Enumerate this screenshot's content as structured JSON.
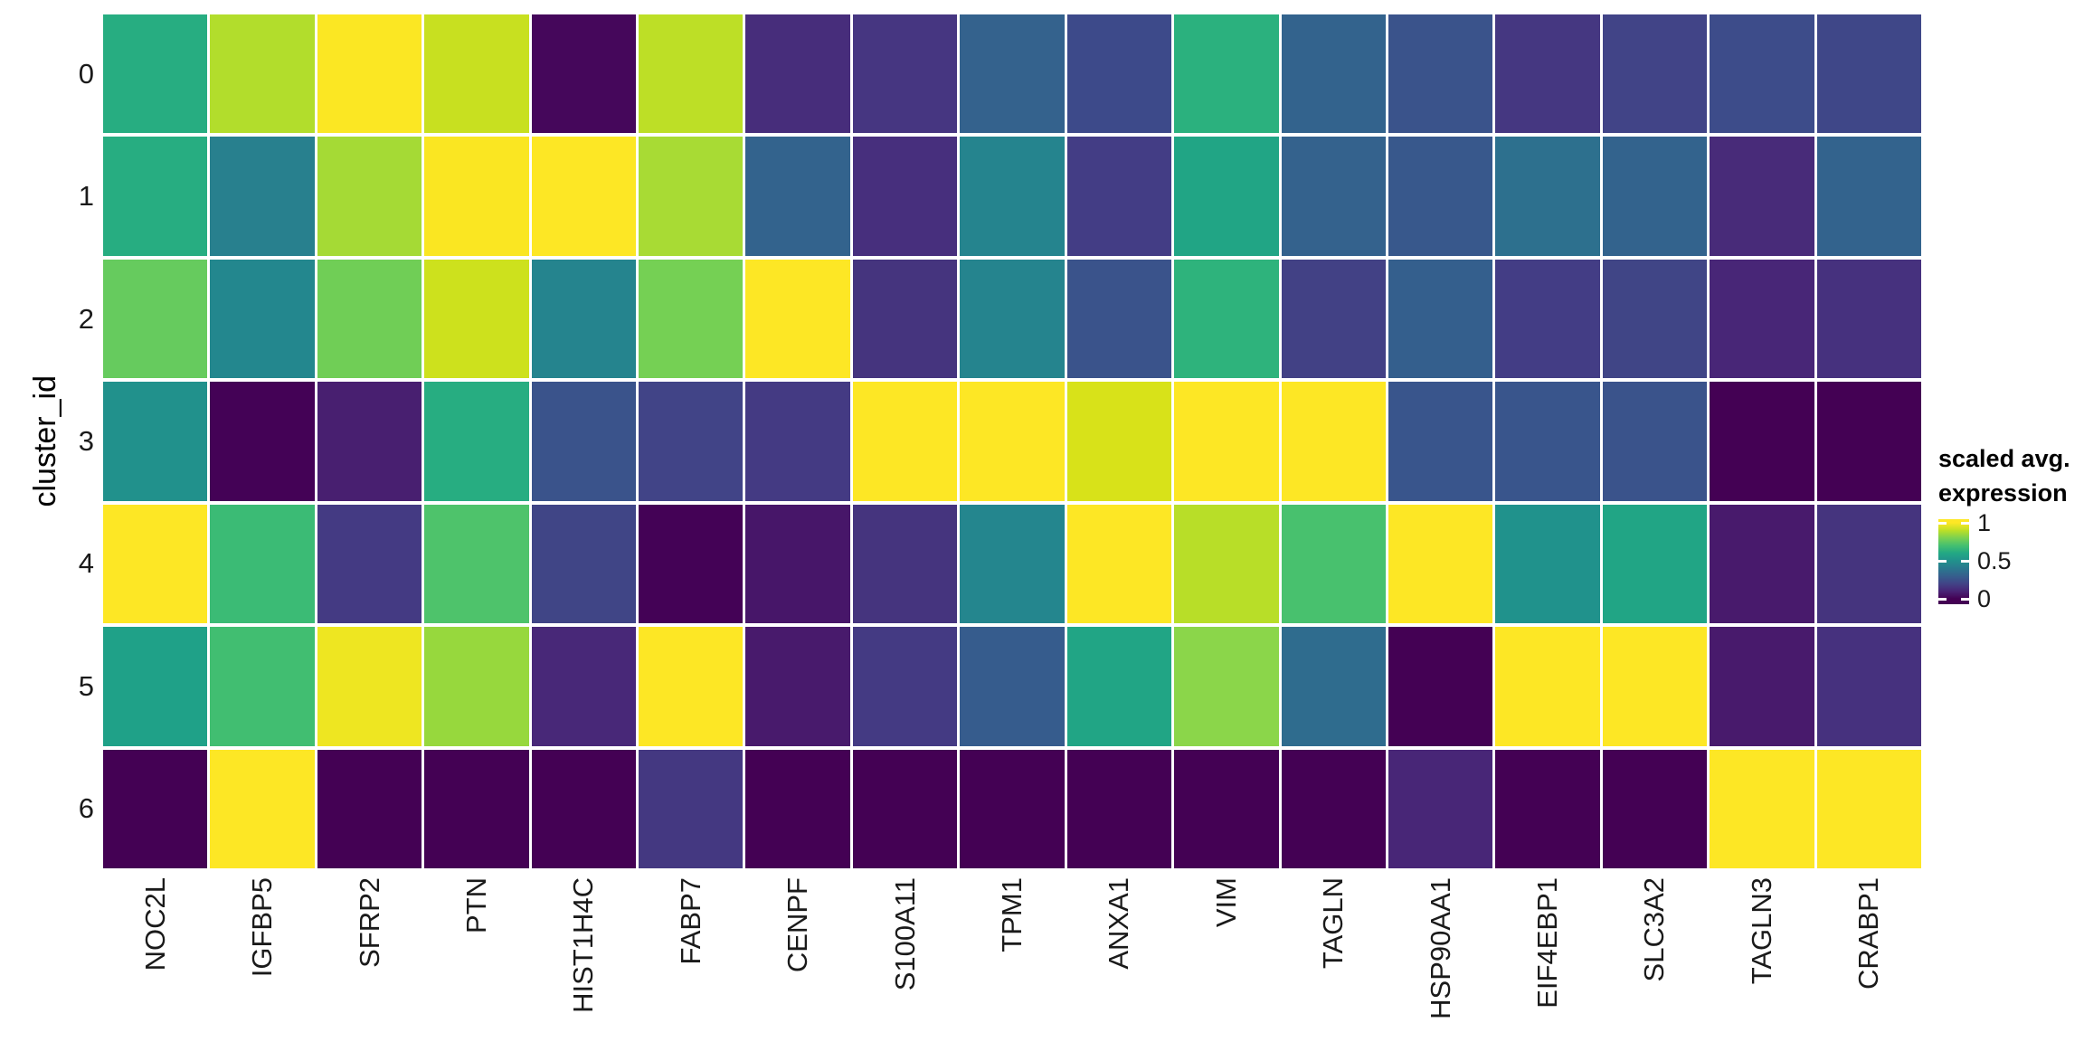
{
  "figure": {
    "background": "#ffffff"
  },
  "y_axis": {
    "title": "cluster_id",
    "tick_labels": [
      "0",
      "1",
      "2",
      "3",
      "4",
      "5",
      "6"
    ]
  },
  "x_axis": {
    "tick_labels": [
      "NOC2L",
      "IGFBP5",
      "SFRP2",
      "PTN",
      "HIST1H4C",
      "FABP7",
      "CENPF",
      "S100A11",
      "TPM1",
      "ANXA1",
      "VIM",
      "TAGLN",
      "HSP90AA1",
      "EIF4EBP1",
      "SLC3A2",
      "TAGLN3",
      "CRABP1"
    ]
  },
  "legend": {
    "title_lines": [
      "scaled avg.",
      "expression"
    ],
    "ticks": [
      {
        "label": "1",
        "value": 1
      },
      {
        "label": "0.5",
        "value": 0.5
      },
      {
        "label": "0",
        "value": 0
      }
    ],
    "colormap_stops": [
      {
        "value": 0.0,
        "color": "#440154"
      },
      {
        "value": 0.1,
        "color": "#482475"
      },
      {
        "value": 0.2,
        "color": "#414487"
      },
      {
        "value": 0.3,
        "color": "#355f8d"
      },
      {
        "value": 0.4,
        "color": "#2a788e"
      },
      {
        "value": 0.5,
        "color": "#21918c"
      },
      {
        "value": 0.6,
        "color": "#22a884"
      },
      {
        "value": 0.7,
        "color": "#44bf70"
      },
      {
        "value": 0.8,
        "color": "#7ad151"
      },
      {
        "value": 0.9,
        "color": "#bddf26"
      },
      {
        "value": 1.0,
        "color": "#fde725"
      }
    ]
  },
  "chart_data": {
    "type": "heatmap",
    "title": "",
    "xlabel": "",
    "ylabel": "cluster_id",
    "colormap": "viridis",
    "value_range": [
      0,
      1
    ],
    "legend_title": "scaled avg. expression",
    "x": [
      "NOC2L",
      "IGFBP5",
      "SFRP2",
      "PTN",
      "HIST1H4C",
      "FABP7",
      "CENPF",
      "S100A11",
      "TPM1",
      "ANXA1",
      "VIM",
      "TAGLN",
      "HSP90AA1",
      "EIF4EBP1",
      "SLC3A2",
      "TAGLN3",
      "CRABP1"
    ],
    "y": [
      "0",
      "1",
      "2",
      "3",
      "4",
      "5",
      "6"
    ],
    "series": [
      {
        "cluster": "0",
        "values": [
          0.62,
          0.88,
          0.99,
          0.92,
          0.04,
          0.9,
          0.15,
          0.16,
          0.32,
          0.24,
          0.64,
          0.33,
          0.26,
          0.16,
          0.2,
          0.24,
          0.22
        ]
      },
      {
        "cluster": "1",
        "values": [
          0.62,
          0.42,
          0.86,
          0.99,
          1.0,
          0.87,
          0.33,
          0.13,
          0.45,
          0.18,
          0.59,
          0.32,
          0.28,
          0.37,
          0.33,
          0.12,
          0.33
        ]
      },
      {
        "cluster": "2",
        "values": [
          0.76,
          0.47,
          0.78,
          0.93,
          0.45,
          0.79,
          1.0,
          0.15,
          0.45,
          0.26,
          0.65,
          0.19,
          0.31,
          0.18,
          0.21,
          0.11,
          0.14
        ]
      },
      {
        "cluster": "3",
        "values": [
          0.5,
          0.01,
          0.09,
          0.62,
          0.26,
          0.2,
          0.17,
          1.0,
          1.0,
          0.94,
          1.0,
          1.0,
          0.27,
          0.27,
          0.26,
          0.0,
          0.0
        ]
      },
      {
        "cluster": "4",
        "values": [
          1.0,
          0.68,
          0.17,
          0.72,
          0.21,
          0.01,
          0.07,
          0.15,
          0.46,
          1.0,
          0.89,
          0.71,
          1.0,
          0.51,
          0.59,
          0.08,
          0.15
        ]
      },
      {
        "cluster": "5",
        "values": [
          0.57,
          0.69,
          0.96,
          0.84,
          0.12,
          1.0,
          0.08,
          0.17,
          0.29,
          0.59,
          0.82,
          0.35,
          0.0,
          1.0,
          1.0,
          0.08,
          0.14
        ]
      },
      {
        "cluster": "6",
        "values": [
          0.0,
          1.0,
          0.0,
          0.0,
          0.0,
          0.16,
          0.0,
          0.0,
          0.0,
          0.0,
          0.0,
          0.0,
          0.11,
          0.0,
          0.0,
          1.0,
          1.0
        ]
      }
    ],
    "cell_colors": [
      [
        "#27ad81",
        "#b2dd2c",
        "#fbe723",
        "#c8e020",
        "#45075b",
        "#bddf26",
        "#472d7b",
        "#463681",
        "#34628d",
        "#3d4a8a",
        "#2bb17e",
        "#33638d",
        "#3a538b",
        "#453781",
        "#414487",
        "#3d4c8a",
        "#3f4788"
      ],
      [
        "#27ad81",
        "#28808e",
        "#a5da35",
        "#fae622",
        "#fde725",
        "#a8db34",
        "#33638d",
        "#472f7d",
        "#25848e",
        "#433d85",
        "#21a585",
        "#34628d",
        "#38588c",
        "#2d708e",
        "#33638d",
        "#482b79",
        "#33638d"
      ],
      [
        "#66cb5e",
        "#23878e",
        "#70ce56",
        "#cde11d",
        "#25848e",
        "#75d054",
        "#fde725",
        "#45347e",
        "#25848e",
        "#3a538b",
        "#2eb37c",
        "#424185",
        "#345f8d",
        "#433d85",
        "#404586",
        "#482677",
        "#46317e"
      ],
      [
        "#21918c",
        "#440256",
        "#481f70",
        "#27ad81",
        "#3a538b",
        "#414487",
        "#443a83",
        "#fde725",
        "#fde725",
        "#d8e219",
        "#fde725",
        "#fde725",
        "#39558c",
        "#39558c",
        "#3a538b",
        "#440154",
        "#440154"
      ],
      [
        "#fde725",
        "#3bbb75",
        "#443a83",
        "#4ec36b",
        "#404586",
        "#440256",
        "#471669",
        "#45347e",
        "#24868e",
        "#fde725",
        "#b8de28",
        "#48c16e",
        "#fde725",
        "#20928c",
        "#21a585",
        "#481a6c",
        "#45347e"
      ],
      [
        "#1fa188",
        "#41be71",
        "#eee621",
        "#97d83d",
        "#482878",
        "#fde725",
        "#481a6c",
        "#443a83",
        "#365c8d",
        "#21a585",
        "#8bd64a",
        "#2f6c8e",
        "#440154",
        "#fde725",
        "#fde725",
        "#481a6c",
        "#46317e"
      ],
      [
        "#440154",
        "#fde725",
        "#440154",
        "#440154",
        "#440154",
        "#443881",
        "#440154",
        "#440154",
        "#440154",
        "#440154",
        "#440154",
        "#440154",
        "#482677",
        "#440154",
        "#440154",
        "#fde725",
        "#fde725"
      ]
    ]
  }
}
